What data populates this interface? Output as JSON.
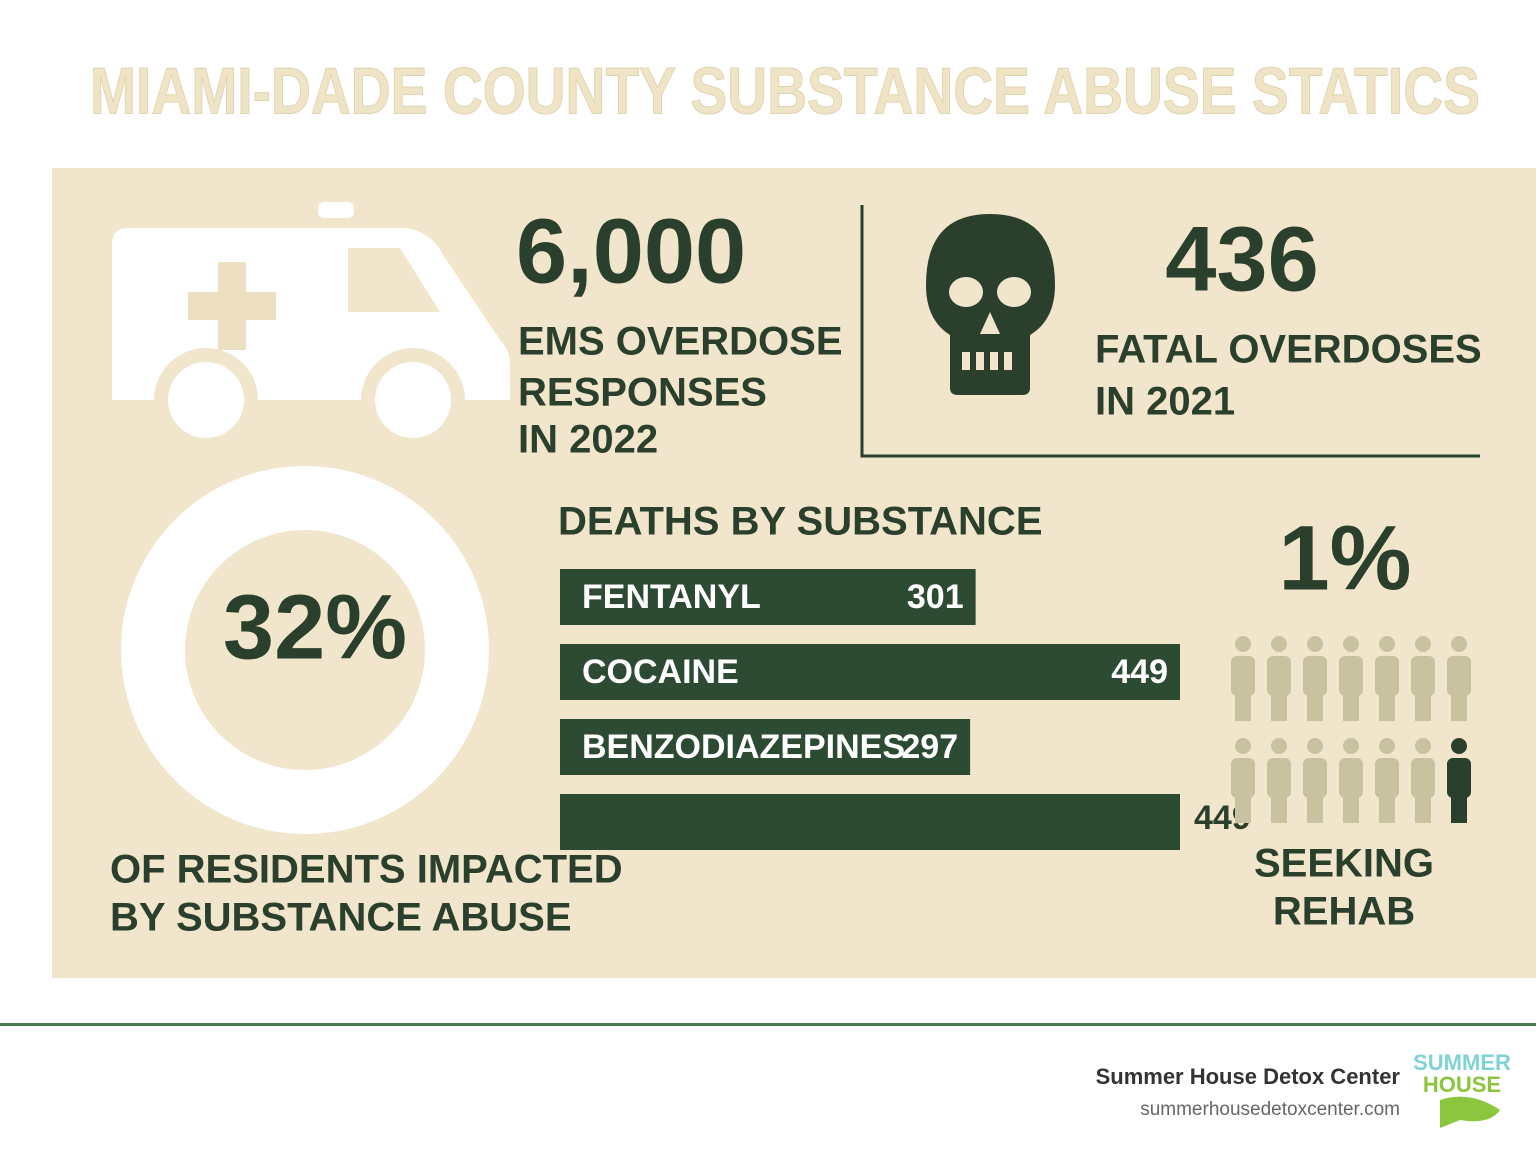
{
  "header": {
    "title": "MIAMI-DADE COUNTY SUBSTANCE ABUSE STATICS"
  },
  "ems": {
    "value": "6,000",
    "label": [
      "EMS OVERDOSE",
      "RESPONSES",
      "IN 2022"
    ]
  },
  "fatal": {
    "value": "436",
    "label": [
      "FATAL OVERDOSES",
      "IN 2021"
    ]
  },
  "residents": {
    "value": "32%",
    "label": [
      "OF RESIDENTS IMPACTED",
      "BY SUBSTANCE ABUSE"
    ]
  },
  "chart_data": {
    "type": "bar",
    "title": "DEATHS BY SUBSTANCE",
    "categories": [
      "FENTANYL",
      "COCAINE",
      "BENZODIAZEPINES",
      null
    ],
    "values": [
      301,
      449,
      297,
      449
    ],
    "color": "#2d4a33"
  },
  "rehab": {
    "value": "1%",
    "label": [
      "SEEKING",
      "REHAB"
    ]
  },
  "footer": {
    "name": "Summer House Detox Center",
    "url": "summerhousedetoxcenter.com",
    "logo": [
      "SUMMER",
      "HOUSE"
    ]
  }
}
